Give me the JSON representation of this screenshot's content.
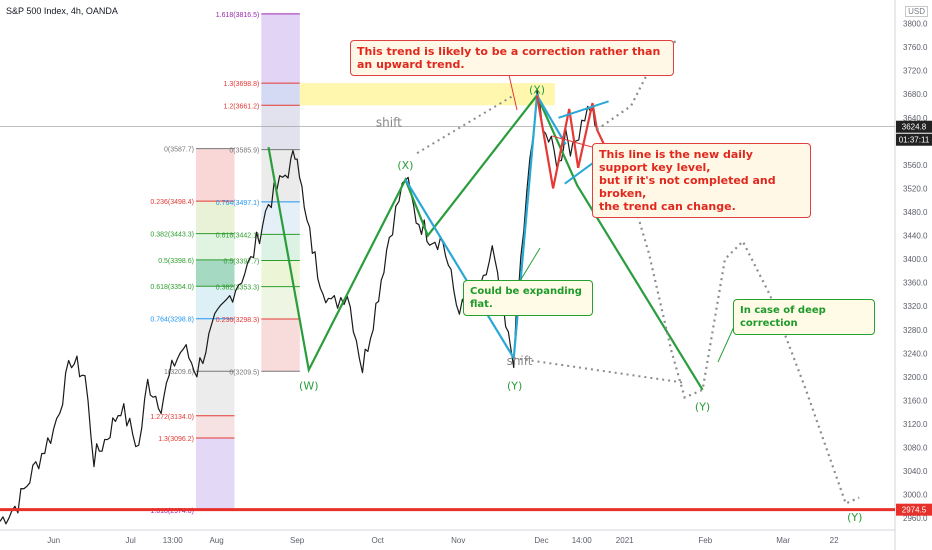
{
  "header": {
    "symbol": "S&P 500 Index, 4h, OANDA",
    "currency": "USD"
  },
  "chart_data": {
    "type": "line",
    "title": "",
    "xlabel": "",
    "ylabel": "",
    "ylim": [
      2940,
      3840
    ],
    "y_scale": "linear",
    "y_ticks": [
      2960,
      3000,
      3040,
      3080,
      3120,
      3160,
      3200,
      3240,
      3280,
      3320,
      3360,
      3400,
      3440,
      3480,
      3520,
      3560,
      3600,
      3640,
      3680,
      3720,
      3760,
      3800
    ],
    "x_ticks": [
      "Jun",
      "Jul",
      "13:00",
      "Aug",
      "Sep",
      "Oct",
      "Nov",
      "Dec",
      "14:00",
      "2021",
      "Feb",
      "Mar",
      "22"
    ],
    "price_label": "3624.8",
    "countdown_label": "01:37:11",
    "support_label": "2974.5",
    "support_level": 2974.5,
    "current_level": 3624.8,
    "wave_labels": [
      {
        "text": "(W)",
        "x": 34.5,
        "y": 3185
      },
      {
        "text": "(X)",
        "x": 45.3,
        "y": 3560
      },
      {
        "text": "(Y)",
        "x": 57.5,
        "y": 3185
      },
      {
        "text": "(X)",
        "x": 60,
        "y": 3688
      },
      {
        "text": "(Y)",
        "x": 78.5,
        "y": 3150
      },
      {
        "text": "(Y)",
        "x": 95.5,
        "y": 2962
      }
    ],
    "fib_left": {
      "labels": [
        "0(3587.7)",
        "0.236(3498.4)",
        "0.382(3443.3)",
        "0.5(3398.6)",
        "0.618(3354.0)",
        "0.764(3298.8)",
        "1(3209.6)",
        "1.272(3134.0)",
        "1.3(3096.2)",
        "1.618(2974.0)"
      ],
      "values": [
        3587.7,
        3498.4,
        3443.3,
        3398.6,
        3354.0,
        3298.8,
        3209.6,
        3134.0,
        3096.2,
        2974.0
      ]
    },
    "fib_right": {
      "labels": [
        "1.618(3816.5)",
        "1.3(3698.8)",
        "1.2(3661.2)",
        "0(3585.9)",
        "0.764(3497.1)",
        "0.618(3442.1)",
        "0.5(3397.7)",
        "0.382(3353.3)",
        "0.236(3298.3)",
        "0(3209.5)"
      ],
      "values": [
        3816.5,
        3698.8,
        3661.2,
        3585.9,
        3497.1,
        3442.1,
        3397.7,
        3353.3,
        3298.3,
        3209.5
      ]
    },
    "shift_labels": [
      {
        "text": "shift",
        "x": 42,
        "y": 3625
      },
      {
        "text": "shift",
        "x": 56.6,
        "y": 3220
      }
    ],
    "wave_green": [
      {
        "x": 30,
        "y": 3590
      },
      {
        "x": 34.5,
        "y": 3212
      },
      {
        "x": 45.3,
        "y": 3535
      },
      {
        "x": 47.8,
        "y": 3440
      },
      {
        "x": 60,
        "y": 3678
      },
      {
        "x": 64.5,
        "y": 3525
      },
      {
        "x": 78.5,
        "y": 3178
      }
    ],
    "wave_blue": [
      {
        "x": 45.3,
        "y": 3535
      },
      {
        "x": 57.4,
        "y": 3232
      },
      {
        "x": 60,
        "y": 3678
      },
      {
        "x": 63.2,
        "y": 3595
      }
    ],
    "wave_red": [
      {
        "x": 60,
        "y": 3678
      },
      {
        "x": 61.8,
        "y": 3520
      },
      {
        "x": 63.6,
        "y": 3655
      },
      {
        "x": 64.6,
        "y": 3555
      },
      {
        "x": 66.2,
        "y": 3665
      },
      {
        "x": 66.7,
        "y": 3620
      },
      {
        "x": 69.5,
        "y": 3530
      }
    ],
    "channel_blue": [
      [
        {
          "x": 62.4,
          "y": 3640
        },
        {
          "x": 68,
          "y": 3668
        }
      ],
      [
        {
          "x": 63.1,
          "y": 3528
        },
        {
          "x": 67.3,
          "y": 3575
        }
      ]
    ],
    "path_dotted_up": [
      {
        "x": 66.7,
        "y": 3620
      },
      {
        "x": 70.5,
        "y": 3660
      },
      {
        "x": 73.5,
        "y": 3750
      },
      {
        "x": 75.5,
        "y": 3770
      }
    ],
    "path_dotted_down": [
      {
        "x": 69,
        "y": 3590
      },
      {
        "x": 72.5,
        "y": 3410
      },
      {
        "x": 75,
        "y": 3245
      },
      {
        "x": 76.5,
        "y": 3165
      },
      {
        "x": 78.5,
        "y": 3178
      },
      {
        "x": 81,
        "y": 3400
      },
      {
        "x": 83,
        "y": 3430
      },
      {
        "x": 86,
        "y": 3340
      },
      {
        "x": 90,
        "y": 3180
      },
      {
        "x": 93,
        "y": 3050
      },
      {
        "x": 94.5,
        "y": 2985
      },
      {
        "x": 96,
        "y": 2995
      }
    ],
    "shift_dotted_1": [
      {
        "x": 46.6,
        "y": 3580
      },
      {
        "x": 57.4,
        "y": 3678
      }
    ],
    "shift_dotted_2": [
      {
        "x": 57.4,
        "y": 3232
      },
      {
        "x": 76.5,
        "y": 3190
      }
    ]
  },
  "notes": {
    "top": "This trend is likely to be a correction rather than an upward trend.",
    "right": [
      "This line is the new daily support key level,",
      "but if it's not completed and broken,",
      "the trend can change."
    ],
    "flat": "Could be expanding flat.",
    "deep": "In case of deep correction"
  },
  "colors": {
    "green": "#2a9d3c",
    "red": "#e53935",
    "blue": "#29a8d6",
    "dotted": "#8c8c8c",
    "support": "#e8302a",
    "fib_highlight": "#fff176",
    "candle_up": "#1a1a1a"
  }
}
